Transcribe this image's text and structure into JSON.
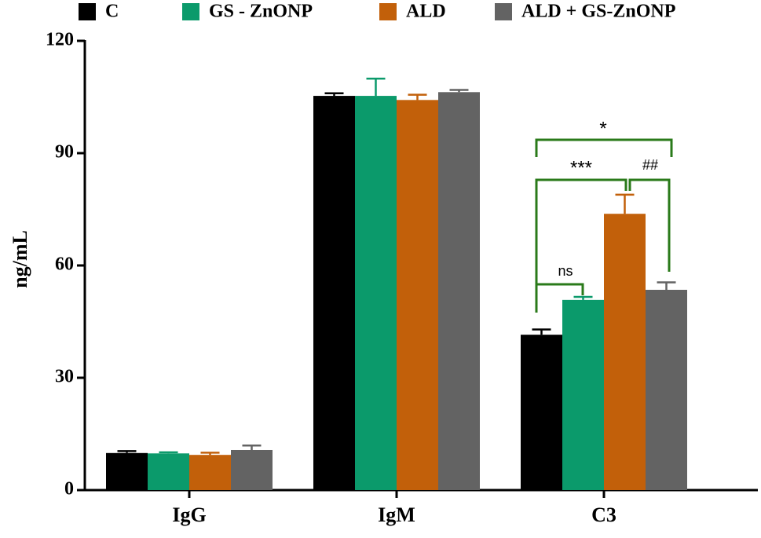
{
  "chart_data": {
    "type": "bar",
    "ylabel": "ng/mL",
    "categories": [
      "IgG",
      "IgM",
      "C3"
    ],
    "series": [
      {
        "name": "C",
        "color": "#000000",
        "values": [
          9.9,
          105.3,
          41.5
        ],
        "errors": [
          0.5,
          0.7,
          1.4
        ]
      },
      {
        "name": "GS - ZnONP",
        "color": "#0b9a6b",
        "values": [
          9.8,
          105.3,
          50.8
        ],
        "errors": [
          0.3,
          4.6,
          0.8
        ]
      },
      {
        "name": "ALD",
        "color": "#c2600a",
        "values": [
          9.4,
          104.2,
          73.8
        ],
        "errors": [
          0.6,
          1.4,
          5.1
        ]
      },
      {
        "name": "ALD + GS-ZnONP",
        "color": "#636363",
        "values": [
          10.7,
          106.3,
          53.5
        ],
        "errors": [
          1.2,
          0.6,
          2
        ]
      }
    ],
    "ylim": [
      0,
      120
    ],
    "yticks": [
      0,
      30,
      60,
      90,
      120
    ],
    "annotations": [
      "ns",
      "***",
      "##",
      "*"
    ]
  }
}
